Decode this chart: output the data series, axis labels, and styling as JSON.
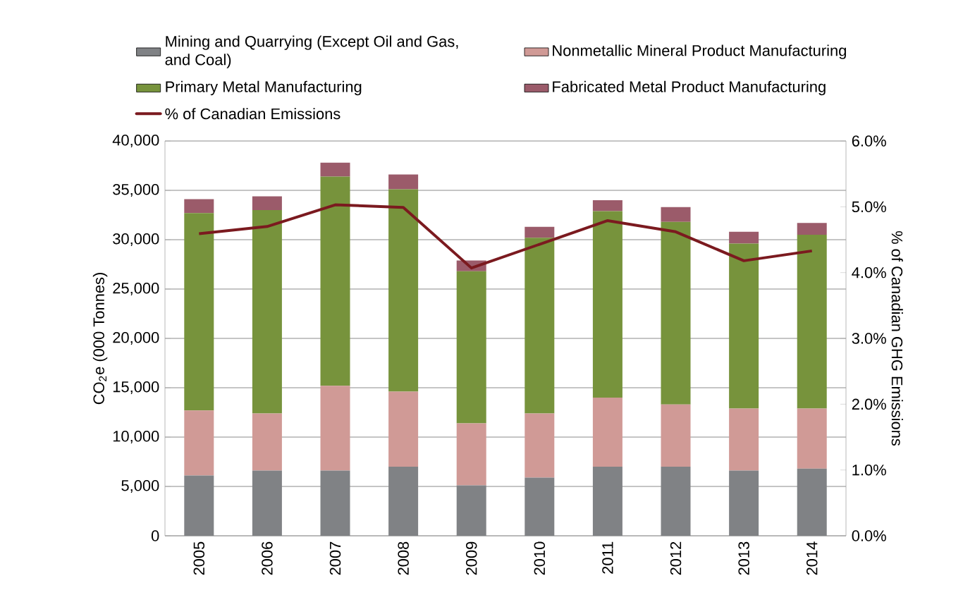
{
  "chart_data": {
    "type": "bar",
    "stacked": true,
    "ylabel": "CO$_{2}$e (000 Tonnes)",
    "y2label": "% of Canadian GHG Emissions",
    "categories": [
      "2005",
      "2006",
      "2007",
      "2008",
      "2009",
      "2010",
      "2011",
      "2012",
      "2013",
      "2014"
    ],
    "series": [
      {
        "name": "Mining and Quarrying (Except Oil and Gas, and Coal)",
        "color": "#808285",
        "values": [
          6100,
          6600,
          6600,
          7000,
          5100,
          5900,
          7000,
          7000,
          6600,
          6800
        ]
      },
      {
        "name": "Nonmetallic Mineral Product Manufacturing",
        "color": "#d09a96",
        "values": [
          6600,
          5800,
          8600,
          7600,
          6300,
          6500,
          7000,
          6300,
          6300,
          6100
        ]
      },
      {
        "name": "Primary Metal Manufacturing",
        "color": "#77933c",
        "values": [
          20000,
          20600,
          21200,
          20500,
          15400,
          17800,
          18900,
          18500,
          16700,
          17600
        ]
      },
      {
        "name": "Fabricated Metal Product Manufacturing",
        "color": "#9b5b6a",
        "values": [
          1400,
          1400,
          1400,
          1500,
          1100,
          1100,
          1100,
          1500,
          1200,
          1200
        ]
      },
      {
        "name": "% of Canadian Emissions",
        "color": "#7b1a1f",
        "type": "line",
        "axis": "y2",
        "values": [
          4.59,
          4.7,
          5.03,
          4.99,
          4.07,
          4.43,
          4.79,
          4.62,
          4.18,
          4.33
        ]
      }
    ],
    "ylim": [
      0,
      40000
    ],
    "yticks": [
      {
        "value": 0,
        "label": "0"
      },
      {
        "value": 5000,
        "label": "5,000"
      },
      {
        "value": 10000,
        "label": "10,000"
      },
      {
        "value": 15000,
        "label": "15,000"
      },
      {
        "value": 20000,
        "label": "20,000"
      },
      {
        "value": 25000,
        "label": "25,000"
      },
      {
        "value": 30000,
        "label": "30,000"
      },
      {
        "value": 35000,
        "label": "35,000"
      },
      {
        "value": 40000,
        "label": "40,000"
      }
    ],
    "y2lim": [
      0,
      6
    ],
    "y2ticks": [
      {
        "value": 0,
        "label": "0.0%"
      },
      {
        "value": 1,
        "label": "1.0%"
      },
      {
        "value": 2,
        "label": "2.0%"
      },
      {
        "value": 3,
        "label": "3.0%"
      },
      {
        "value": 4,
        "label": "4.0%"
      },
      {
        "value": 5,
        "label": "5.0%"
      },
      {
        "value": 6,
        "label": "6.0%"
      }
    ],
    "grid": "y",
    "legend": "top"
  }
}
